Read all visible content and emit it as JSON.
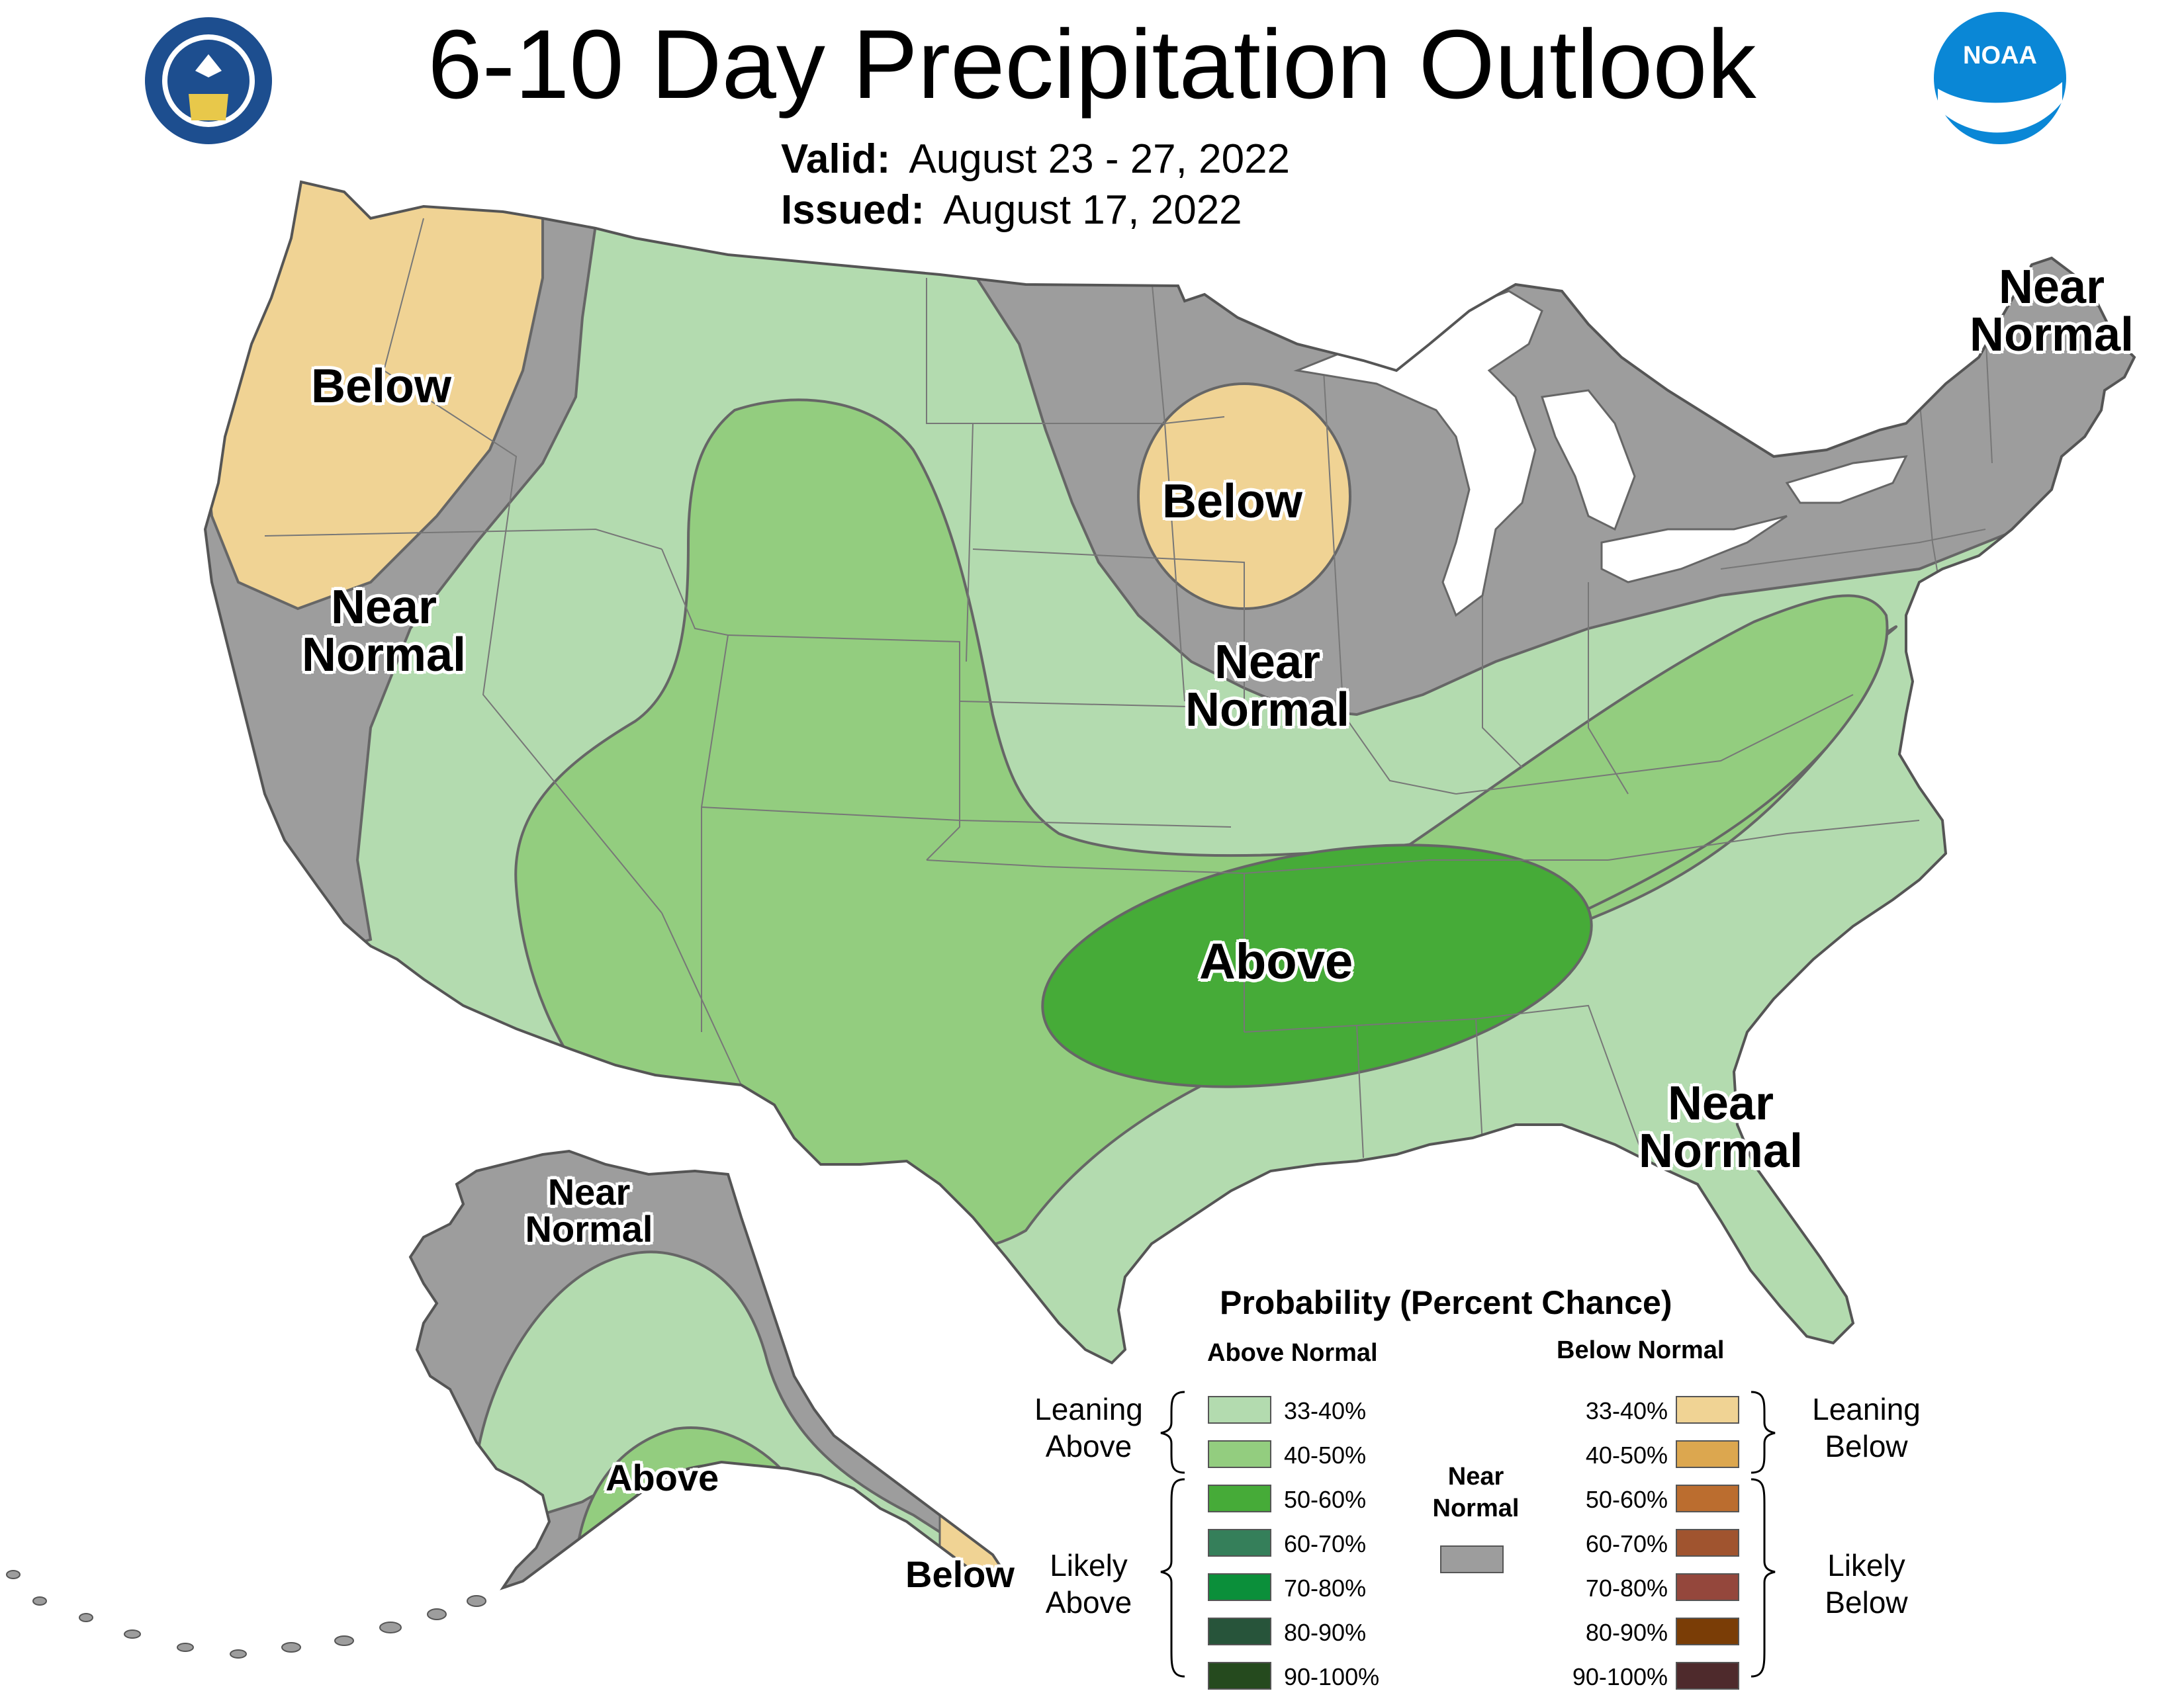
{
  "header": {
    "title": "6-10 Day Precipitation Outlook",
    "valid_label": "Valid:",
    "valid_value": "August 23 - 27, 2022",
    "issued_label": "Issued:",
    "issued_value": "August 17, 2022"
  },
  "logos": {
    "left": "department-of-commerce-seal",
    "right": "noaa-logo",
    "right_text": "NOAA"
  },
  "map_labels": {
    "pacnw_below": "Below",
    "west_near_1": "Near",
    "west_near_2": "Normal",
    "midwest_below": "Below",
    "midwest_near_1": "Near",
    "midwest_near_2": "Normal",
    "ne_near_1": "Near",
    "ne_near_2": "Normal",
    "south_above": "Above",
    "se_near_1": "Near",
    "se_near_2": "Normal",
    "ak_near_1": "Near",
    "ak_near_2": "Normal",
    "ak_above": "Above",
    "ak_below": "Below"
  },
  "legend": {
    "title": "Probability (Percent Chance)",
    "above_header": "Above Normal",
    "below_header": "Below Normal",
    "leaning_above_1": "Leaning",
    "leaning_above_2": "Above",
    "likely_above_1": "Likely",
    "likely_above_2": "Above",
    "leaning_below_1": "Leaning",
    "leaning_below_2": "Below",
    "likely_below_1": "Likely",
    "likely_below_2": "Below",
    "near_1": "Near",
    "near_2": "Normal",
    "near_color": "#9d9d9d",
    "above": [
      {
        "label": "33-40%",
        "color": "#b3dbaf"
      },
      {
        "label": "40-50%",
        "color": "#93cd7f"
      },
      {
        "label": "50-60%",
        "color": "#46ab38"
      },
      {
        "label": "60-70%",
        "color": "#357f5a"
      },
      {
        "label": "70-80%",
        "color": "#0b8f3a"
      },
      {
        "label": "80-90%",
        "color": "#27543a"
      },
      {
        "label": "90-100%",
        "color": "#254a1e"
      }
    ],
    "below": [
      {
        "label": "33-40%",
        "color": "#f0d394"
      },
      {
        "label": "40-50%",
        "color": "#dca74f"
      },
      {
        "label": "50-60%",
        "color": "#bb6d2f"
      },
      {
        "label": "60-70%",
        "color": "#a0542f"
      },
      {
        "label": "70-80%",
        "color": "#94473c"
      },
      {
        "label": "80-90%",
        "color": "#7a3d06"
      },
      {
        "label": "90-100%",
        "color": "#4e2a2c"
      }
    ]
  },
  "colors": {
    "near_normal": "#9d9d9d",
    "above_33_40": "#b3dbaf",
    "above_40_50": "#93cd7f",
    "above_50_60": "#46ab38",
    "below_33_40": "#f0d394",
    "water": "#ffffff"
  }
}
